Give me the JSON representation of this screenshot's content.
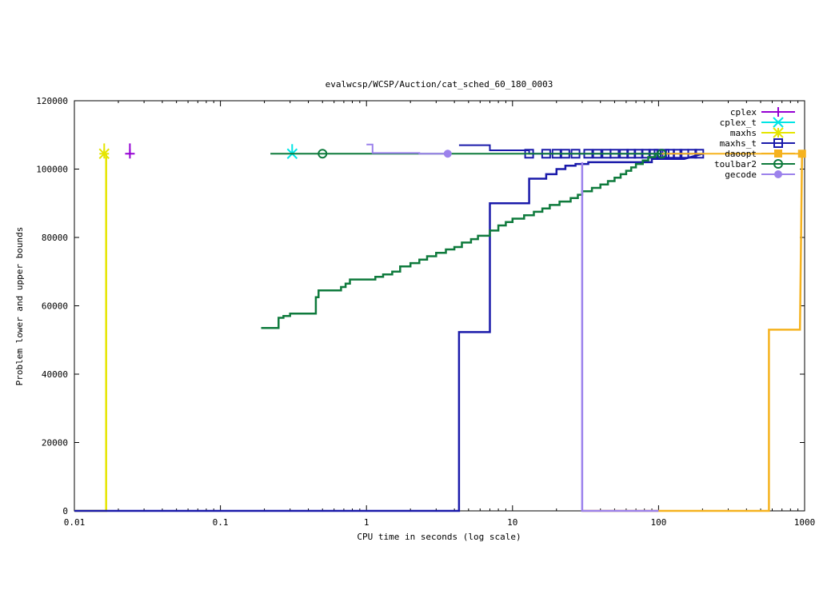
{
  "chart_data": {
    "type": "line",
    "title": "evalwcsp/WCSP/Auction/cat_sched_60_180_0003",
    "xlabel": "CPU time in seconds (log scale)",
    "ylabel": "Problem lower and upper bounds",
    "xscale": "log",
    "xlim": [
      0.01,
      1000
    ],
    "ylim": [
      0,
      120000
    ],
    "x_ticks": [
      {
        "value": 0.01,
        "label": "0.01"
      },
      {
        "value": 0.1,
        "label": "0.1"
      },
      {
        "value": 1,
        "label": "1"
      },
      {
        "value": 10,
        "label": "10"
      },
      {
        "value": 100,
        "label": "100"
      },
      {
        "value": 1000,
        "label": "1000"
      }
    ],
    "y_ticks": [
      {
        "value": 0,
        "label": "0"
      },
      {
        "value": 20000,
        "label": "20000"
      },
      {
        "value": 40000,
        "label": "40000"
      },
      {
        "value": 60000,
        "label": "60000"
      },
      {
        "value": 80000,
        "label": "80000"
      },
      {
        "value": 100000,
        "label": "100000"
      },
      {
        "value": 120000,
        "label": "120000"
      }
    ],
    "grid": false,
    "legend_position": "top-right",
    "series": [
      {
        "name": "cplex",
        "color": "#9400d3",
        "marker": "plus",
        "upper": [
          [
            0.024,
            107500
          ],
          [
            0.024,
            104500
          ]
        ],
        "lower": [],
        "points": [
          [
            0.024,
            104500
          ]
        ]
      },
      {
        "name": "cplex_t",
        "color": "#00e5e5",
        "marker": "cross",
        "upper": [
          [
            0.31,
            107300
          ],
          [
            0.31,
            104500
          ]
        ],
        "lower": [],
        "points": [
          [
            0.31,
            104500
          ]
        ]
      },
      {
        "name": "maxhs",
        "color": "#e5e500",
        "marker": "star",
        "upper": [
          [
            0.016,
            107500
          ],
          [
            0.016,
            104500
          ]
        ],
        "lower": [
          [
            0.01,
            0
          ],
          [
            0.0165,
            0
          ],
          [
            0.0165,
            104500
          ]
        ],
        "points": [
          [
            0.016,
            104500
          ]
        ]
      },
      {
        "name": "maxhs_t",
        "color": "#1a1aaa",
        "marker": "box",
        "upper": [
          [
            4.3,
            107000
          ],
          [
            7,
            107000
          ],
          [
            7,
            105500
          ],
          [
            13,
            105500
          ],
          [
            13,
            104500
          ],
          [
            200,
            104500
          ]
        ],
        "lower": [
          [
            0.01,
            0
          ],
          [
            4.3,
            0
          ],
          [
            4.3,
            52300
          ],
          [
            7,
            52300
          ],
          [
            7,
            90000
          ],
          [
            13,
            90000
          ],
          [
            13,
            97200
          ],
          [
            17,
            97200
          ],
          [
            17,
            98500
          ],
          [
            20,
            98500
          ],
          [
            20,
            100000
          ],
          [
            23,
            100000
          ],
          [
            23,
            101000
          ],
          [
            27,
            101000
          ],
          [
            27,
            101500
          ],
          [
            33,
            101500
          ],
          [
            33,
            102000
          ],
          [
            90,
            102000
          ],
          [
            90,
            103000
          ],
          [
            150,
            103000
          ],
          [
            200,
            104500
          ]
        ],
        "points": [
          [
            13,
            104500
          ],
          [
            17,
            104500
          ],
          [
            20,
            104500
          ],
          [
            23,
            104500
          ],
          [
            27,
            104500
          ],
          [
            33,
            104500
          ],
          [
            38,
            104500
          ],
          [
            44,
            104500
          ],
          [
            50,
            104500
          ],
          [
            58,
            104500
          ],
          [
            65,
            104500
          ],
          [
            73,
            104500
          ],
          [
            82,
            104500
          ],
          [
            92,
            104500
          ],
          [
            100,
            104500
          ],
          [
            110,
            104500
          ],
          [
            120,
            104500
          ],
          [
            135,
            104500
          ],
          [
            150,
            104500
          ],
          [
            170,
            104500
          ],
          [
            190,
            104500
          ]
        ]
      },
      {
        "name": "daoopt",
        "color": "#f5b21e",
        "marker": "filled-box",
        "upper": [
          [
            105,
            104500
          ],
          [
            960,
            104500
          ]
        ],
        "lower": [
          [
            30,
            0
          ],
          [
            570,
            0
          ],
          [
            570,
            53000
          ],
          [
            930,
            53000
          ],
          [
            930,
            53000
          ],
          [
            960,
            104500
          ]
        ],
        "points": [
          [
            960,
            104500
          ]
        ]
      },
      {
        "name": "toulbar2",
        "color": "#0e7a3c",
        "marker": "circle",
        "upper": [
          [
            0.22,
            104500
          ],
          [
            105,
            104500
          ]
        ],
        "lower": [
          [
            0.19,
            53500
          ],
          [
            0.25,
            53500
          ],
          [
            0.25,
            56500
          ],
          [
            0.27,
            56500
          ],
          [
            0.27,
            57000
          ],
          [
            0.3,
            57000
          ],
          [
            0.3,
            57700
          ],
          [
            0.45,
            57700
          ],
          [
            0.45,
            62500
          ],
          [
            0.47,
            62500
          ],
          [
            0.47,
            64500
          ],
          [
            0.67,
            64500
          ],
          [
            0.67,
            65500
          ],
          [
            0.72,
            65500
          ],
          [
            0.72,
            66500
          ],
          [
            0.77,
            66500
          ],
          [
            0.77,
            67700
          ],
          [
            1.15,
            67700
          ],
          [
            1.15,
            68500
          ],
          [
            1.3,
            68500
          ],
          [
            1.3,
            69200
          ],
          [
            1.5,
            69200
          ],
          [
            1.5,
            70000
          ],
          [
            1.7,
            70000
          ],
          [
            1.7,
            71500
          ],
          [
            2.0,
            71500
          ],
          [
            2.0,
            72500
          ],
          [
            2.3,
            72500
          ],
          [
            2.3,
            73500
          ],
          [
            2.6,
            73500
          ],
          [
            2.6,
            74500
          ],
          [
            3.0,
            74500
          ],
          [
            3.0,
            75500
          ],
          [
            3.5,
            75500
          ],
          [
            3.5,
            76500
          ],
          [
            4.0,
            76500
          ],
          [
            4.0,
            77200
          ],
          [
            4.5,
            77200
          ],
          [
            4.5,
            78500
          ],
          [
            5.2,
            78500
          ],
          [
            5.2,
            79500
          ],
          [
            5.8,
            79500
          ],
          [
            5.8,
            80500
          ],
          [
            7.0,
            80500
          ],
          [
            7.0,
            82000
          ],
          [
            8.0,
            82000
          ],
          [
            8.0,
            83500
          ],
          [
            9.0,
            83500
          ],
          [
            9.0,
            84500
          ],
          [
            10,
            84500
          ],
          [
            10,
            85500
          ],
          [
            12,
            85500
          ],
          [
            12,
            86500
          ],
          [
            14,
            86500
          ],
          [
            14,
            87500
          ],
          [
            16,
            87500
          ],
          [
            16,
            88500
          ],
          [
            18,
            88500
          ],
          [
            18,
            89500
          ],
          [
            21,
            89500
          ],
          [
            21,
            90500
          ],
          [
            25,
            90500
          ],
          [
            25,
            91500
          ],
          [
            28,
            91500
          ],
          [
            28,
            92500
          ],
          [
            30,
            92500
          ],
          [
            30,
            93500
          ],
          [
            35,
            93500
          ],
          [
            35,
            94500
          ],
          [
            40,
            94500
          ],
          [
            40,
            95500
          ],
          [
            45,
            95500
          ],
          [
            45,
            96500
          ],
          [
            50,
            96500
          ],
          [
            50,
            97500
          ],
          [
            55,
            97500
          ],
          [
            55,
            98500
          ],
          [
            60,
            98500
          ],
          [
            60,
            99500
          ],
          [
            65,
            99500
          ],
          [
            65,
            100500
          ],
          [
            70,
            100500
          ],
          [
            70,
            101500
          ],
          [
            78,
            101500
          ],
          [
            78,
            102500
          ],
          [
            85,
            102500
          ],
          [
            85,
            103500
          ],
          [
            95,
            103500
          ],
          [
            95,
            104500
          ],
          [
            105,
            104500
          ]
        ],
        "points": [
          [
            0.5,
            104500
          ],
          [
            105,
            104500
          ]
        ]
      },
      {
        "name": "gecode",
        "color": "#9c82ec",
        "marker": "filled-circle",
        "upper": [
          [
            1.0,
            107200
          ],
          [
            1.1,
            107200
          ],
          [
            1.1,
            104700
          ],
          [
            2.3,
            104700
          ],
          [
            2.3,
            104500
          ],
          [
            3.6,
            104500
          ]
        ],
        "lower": [
          [
            30,
            102000
          ],
          [
            30,
            0
          ],
          [
            100,
            0
          ]
        ],
        "points": [
          [
            3.6,
            104500
          ]
        ]
      }
    ]
  }
}
